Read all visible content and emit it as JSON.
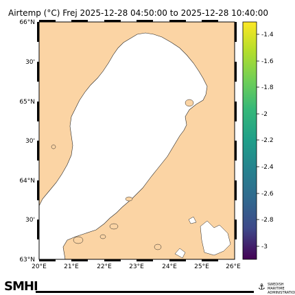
{
  "title": {
    "text": "Airtemp (°C)  Frej 2025-12-28 04:50:00  to  2025-12-28 10:40:00"
  },
  "map": {
    "lat_labels": [
      "66°N",
      "30'",
      "65°N",
      "30'",
      "64°N",
      "30'",
      "63°N"
    ],
    "lon_labels": [
      "20°E",
      "21°E",
      "22°E",
      "23°E",
      "24°E",
      "25°E",
      "26°E"
    ],
    "land_color": "#fbd4a4",
    "sea_color": "#ffffff"
  },
  "colorbar": {
    "ticks": [
      "-1.4",
      "-1.6",
      "-1.8",
      "-2",
      "-2.2",
      "-2.4",
      "-2.6",
      "-2.8",
      "-3"
    ],
    "colors": [
      "#fde725",
      "#b5de2b",
      "#6ece58",
      "#35b779",
      "#1f9e89",
      "#26828e",
      "#31688e",
      "#3e4989",
      "#482878",
      "#440154"
    ]
  },
  "footer": {
    "logo": "SMHI",
    "org_line1": "SWEDISH MARITIME",
    "org_line2": "ADMINISTRATION"
  }
}
